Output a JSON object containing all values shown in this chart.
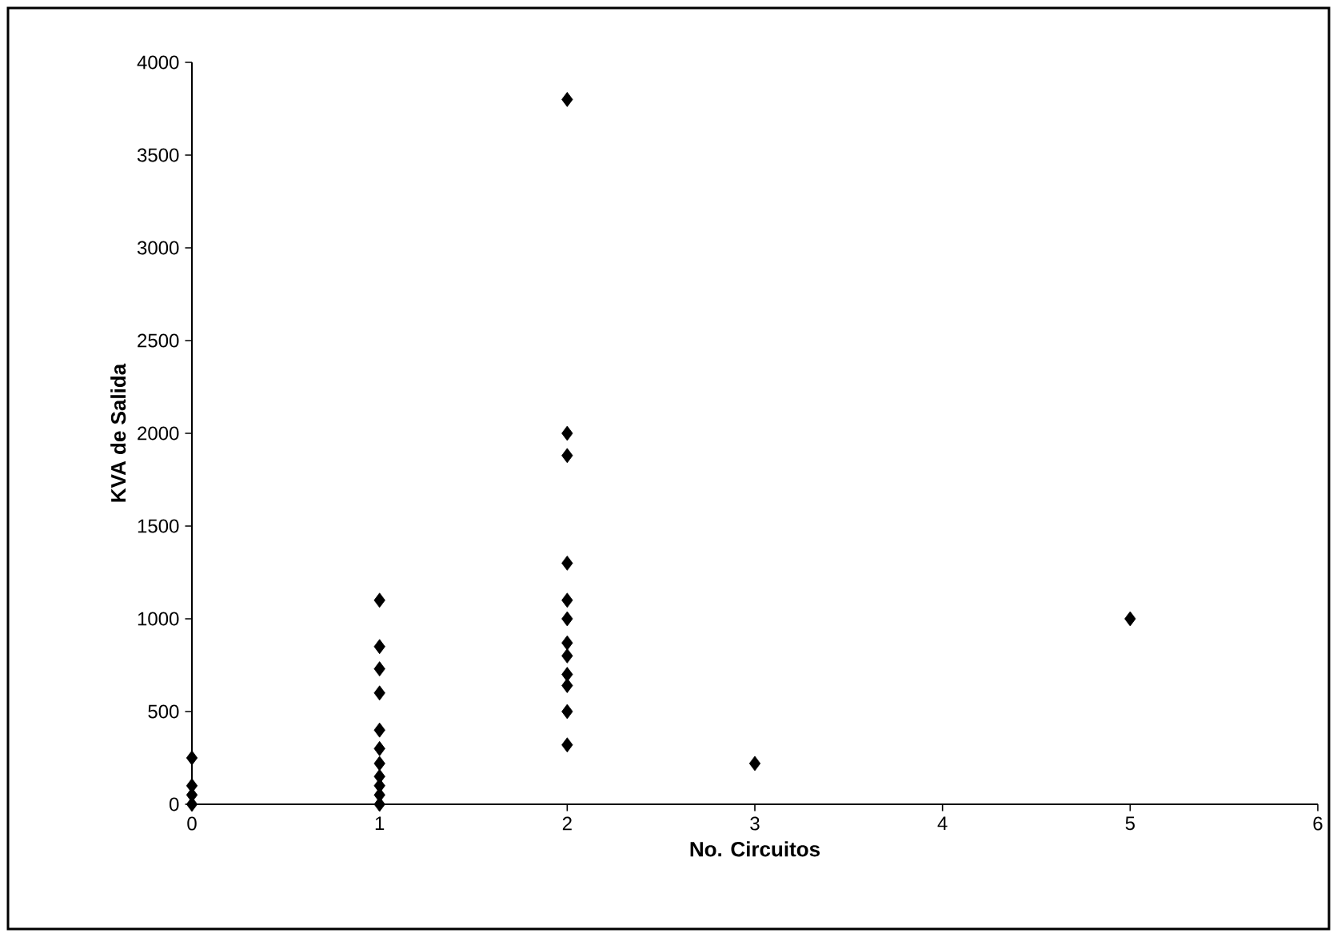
{
  "chart_data": {
    "type": "scatter",
    "xlabel": "No. Circuitos",
    "ylabel": "KVA de Salida",
    "x": [
      0,
      0,
      0,
      0,
      1,
      1,
      1,
      1,
      1,
      1,
      1,
      1,
      1,
      1,
      1,
      2,
      2,
      2,
      2,
      2,
      2,
      2,
      2,
      2,
      2,
      2,
      2,
      3,
      5
    ],
    "values": [
      250,
      100,
      50,
      0,
      1100,
      850,
      730,
      600,
      400,
      300,
      220,
      150,
      100,
      50,
      0,
      3800,
      2000,
      1880,
      1300,
      1100,
      1000,
      870,
      800,
      700,
      640,
      500,
      320,
      220,
      1000
    ],
    "color": "#000000",
    "marker": "diamond",
    "xlim": [
      0,
      6
    ],
    "xticks": [
      0,
      1,
      2,
      3,
      4,
      5,
      6
    ],
    "ylim": [
      0,
      4000
    ],
    "yticks": [
      0,
      500,
      1000,
      1500,
      2000,
      2500,
      3000,
      3500,
      4000
    ]
  }
}
